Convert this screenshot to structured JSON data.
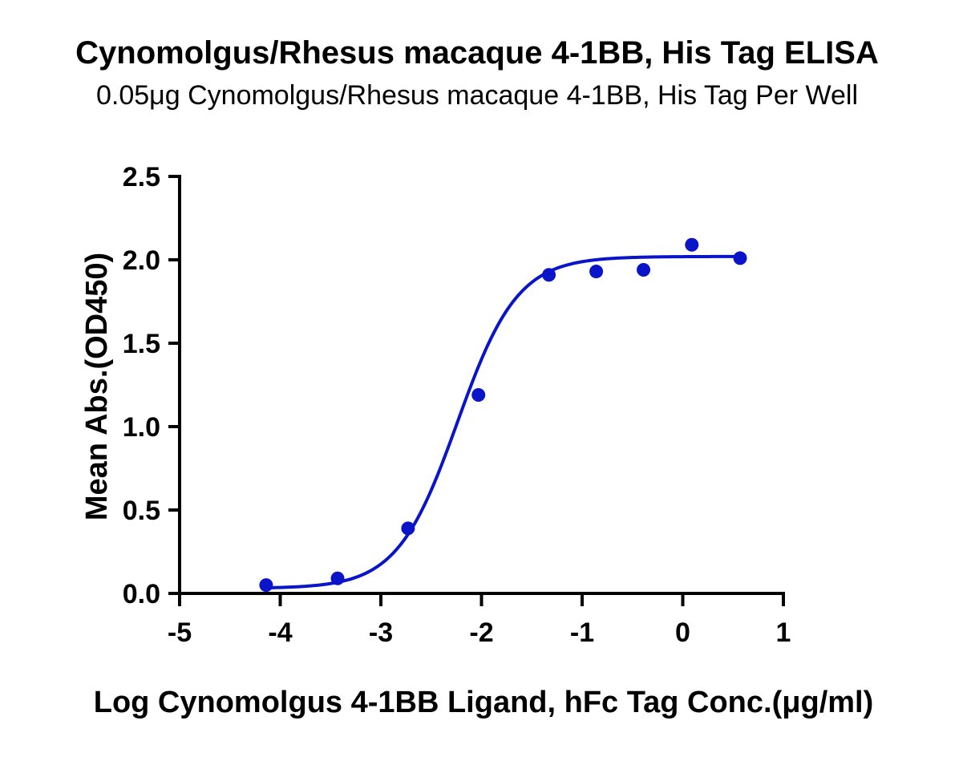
{
  "chart_data": {
    "type": "scatter",
    "title": "Cynomolgus/Rhesus macaque 4-1BB, His Tag ELISA",
    "subtitle": "0.05μg Cynomolgus/Rhesus macaque 4-1BB, His Tag Per Well",
    "xlabel": "Log Cynomolgus 4-1BB Ligand, hFc Tag Conc.(μg/ml)",
    "ylabel": "Mean Abs.(OD450)",
    "xlim": [
      -5,
      1
    ],
    "ylim": [
      0,
      2.5
    ],
    "x_ticks": [
      -5,
      -4,
      -3,
      -2,
      -1,
      0,
      1
    ],
    "x_tick_labels": [
      "-5",
      "-4",
      "-3",
      "-2",
      "-1",
      "0",
      "1"
    ],
    "y_ticks": [
      0,
      0.5,
      1,
      1.5,
      2,
      2.5
    ],
    "y_tick_labels": [
      "0.0",
      "0.5",
      "1.0",
      "1.5",
      "2.0",
      "2.5"
    ],
    "grid": false,
    "legend": "none",
    "series": [
      {
        "x": [
          -4.14,
          -3.43,
          -2.73,
          -2.03,
          -1.33,
          -0.86,
          -0.39,
          0.09,
          0.57
        ],
        "y": [
          0.05,
          0.09,
          0.39,
          1.19,
          1.91,
          1.93,
          1.94,
          2.09,
          2.01
        ],
        "color": "#0a14c8",
        "fit": {
          "model": "4PL",
          "bottom": 0.03,
          "top": 2.02,
          "logEC50": -2.24,
          "hill": 1.45
        }
      }
    ]
  }
}
